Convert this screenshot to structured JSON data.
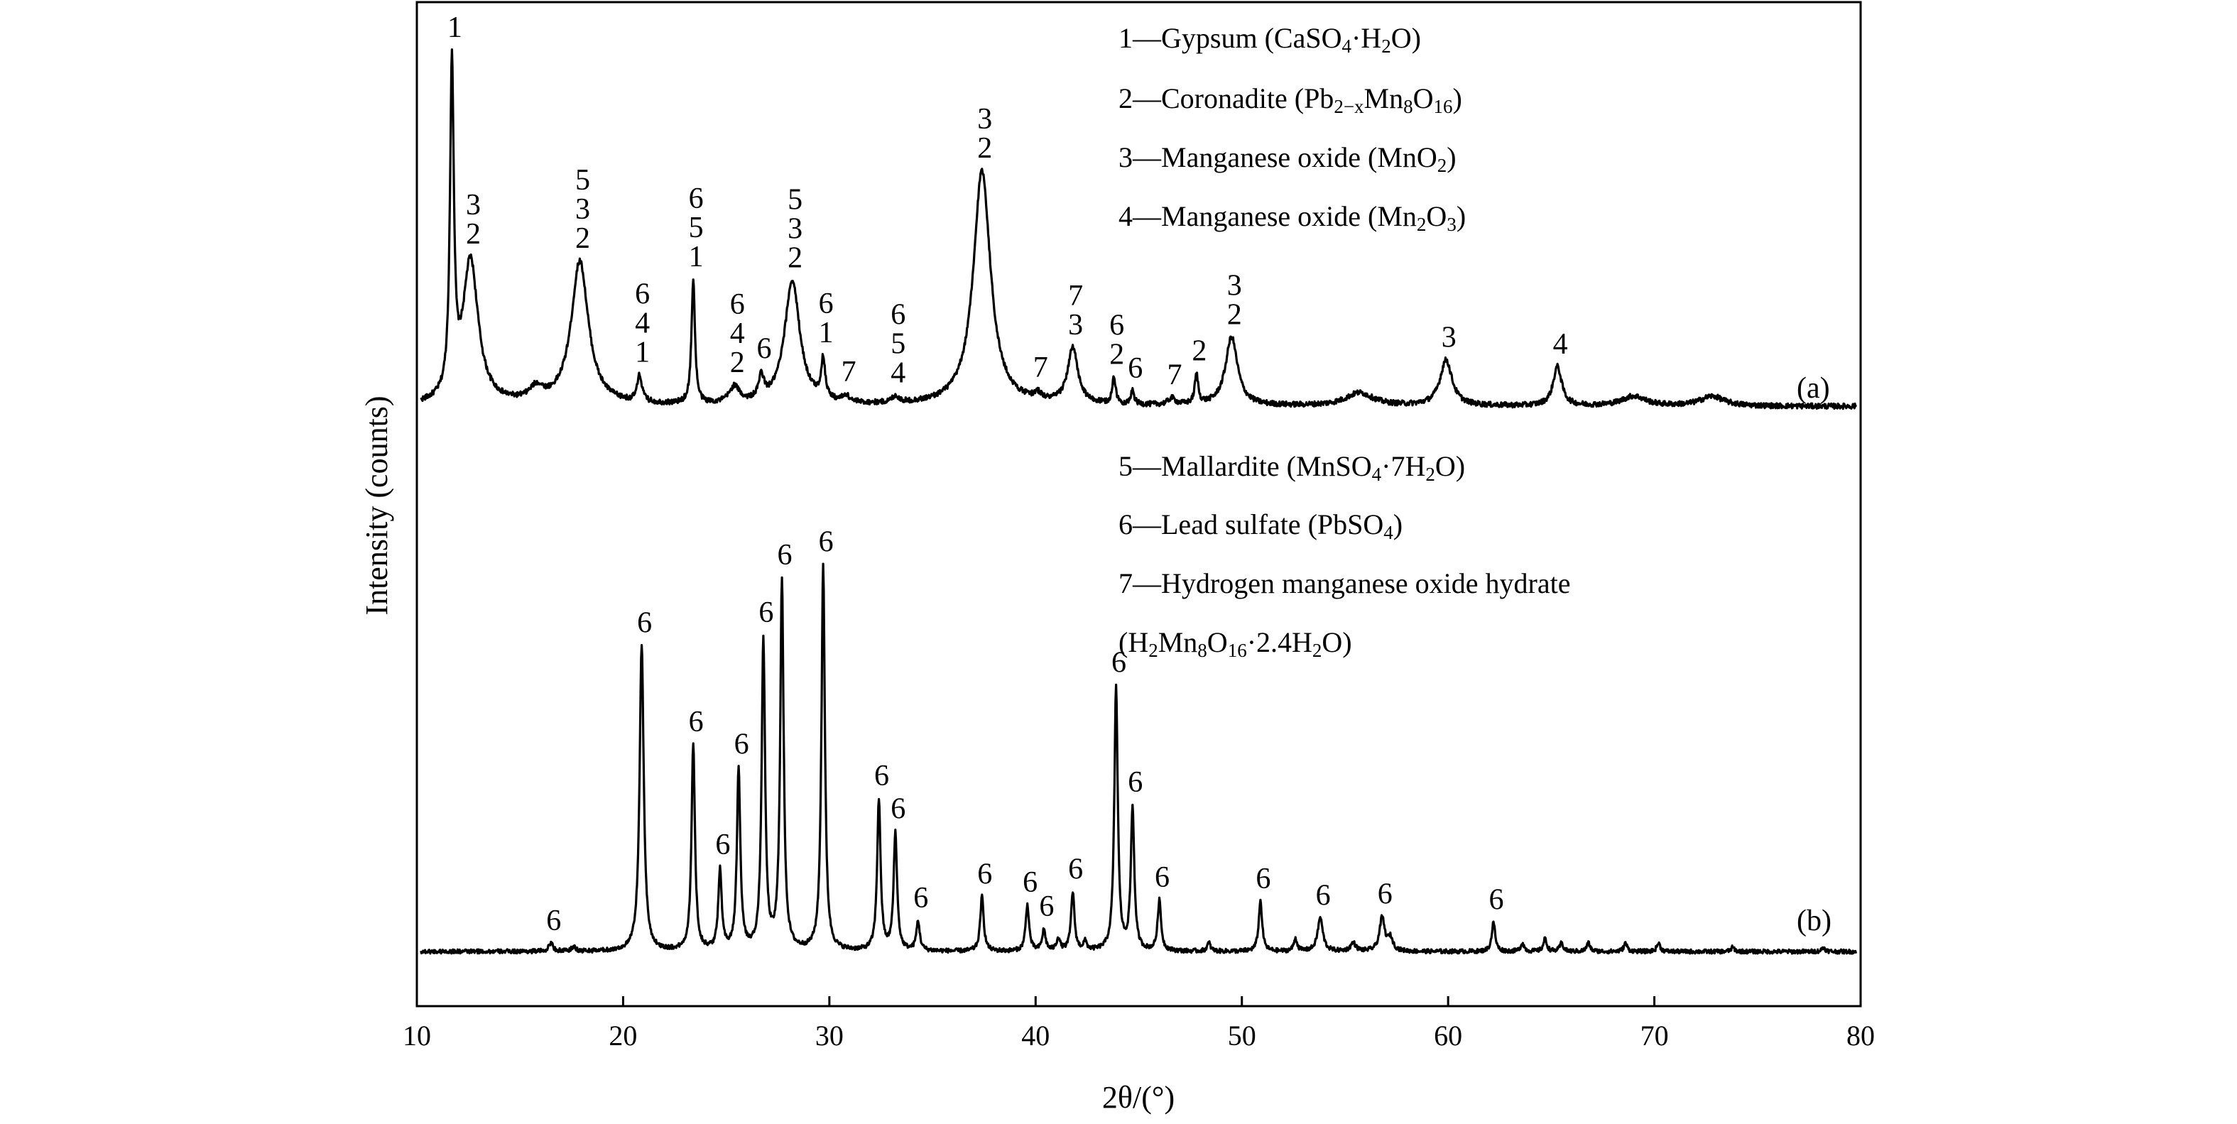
{
  "chart_data": {
    "type": "line",
    "xlabel": "2θ/(°)",
    "ylabel": "Intensity (counts)",
    "xlim": [
      10,
      80
    ],
    "x_ticks": [
      "10",
      "20",
      "30",
      "40",
      "50",
      "60",
      "70",
      "80"
    ],
    "grid": false,
    "legend": [
      {
        "id": "1",
        "name": "Gypsum",
        "formula": [
          "CaSO",
          {
            "sub": "4"
          },
          "·H",
          {
            "sub": "2"
          },
          "O"
        ]
      },
      {
        "id": "2",
        "name": "Coronadite",
        "formula": [
          "Pb",
          {
            "sub": "2−x"
          },
          "Mn",
          {
            "sub": "8"
          },
          "O",
          {
            "sub": "16"
          }
        ]
      },
      {
        "id": "3",
        "name": "Manganese oxide",
        "formula": [
          "MnO",
          {
            "sub": "2"
          }
        ]
      },
      {
        "id": "4",
        "name": "Manganese oxide",
        "formula": [
          "Mn",
          {
            "sub": "2"
          },
          "O",
          {
            "sub": "3"
          }
        ]
      },
      {
        "id": "5",
        "name": "Mallardite",
        "formula": [
          "MnSO",
          {
            "sub": "4"
          },
          "·7H",
          {
            "sub": "2"
          },
          "O"
        ]
      },
      {
        "id": "6",
        "name": "Lead sulfate",
        "formula": [
          "PbSO",
          {
            "sub": "4"
          }
        ]
      },
      {
        "id": "7",
        "name": "Hydrogen manganese oxide hydrate",
        "formula": [
          "H",
          {
            "sub": "2"
          },
          "Mn",
          {
            "sub": "8"
          },
          "O",
          {
            "sub": "16"
          },
          "·2.4H",
          {
            "sub": "2"
          },
          "O"
        ]
      }
    ],
    "series": [
      {
        "name": "(a)",
        "x_start": 10.2,
        "baseline": 0.06,
        "noise": 0.008,
        "peaks": [
          {
            "x": 11.7,
            "h": 1.0,
            "w": 0.11,
            "labels": [
              "1"
            ]
          },
          {
            "x": 12.6,
            "h": 0.44,
            "w": 0.45,
            "labels": [
              "3",
              "2"
            ]
          },
          {
            "x": 15.8,
            "h": 0.04,
            "w": 0.4,
            "labels": []
          },
          {
            "x": 17.9,
            "h": 0.44,
            "w": 0.5,
            "labels": [
              "5",
              "3",
              "2"
            ]
          },
          {
            "x": 20.8,
            "h": 0.08,
            "w": 0.14,
            "labels": [
              "6",
              "4",
              "1"
            ]
          },
          {
            "x": 23.4,
            "h": 0.38,
            "w": 0.1,
            "labels": [
              "6",
              "5",
              "1"
            ]
          },
          {
            "x": 25.4,
            "h": 0.05,
            "w": 0.3,
            "labels": [
              "6",
              "4",
              "2"
            ]
          },
          {
            "x": 26.7,
            "h": 0.07,
            "w": 0.15,
            "labels": [
              "6"
            ]
          },
          {
            "x": 28.2,
            "h": 0.38,
            "w": 0.45,
            "labels": [
              "5",
              "3",
              "2"
            ]
          },
          {
            "x": 29.7,
            "h": 0.12,
            "w": 0.12,
            "labels": [
              "6",
              "1"
            ]
          },
          {
            "x": 30.8,
            "h": 0.02,
            "w": 0.2,
            "labels": [
              "7"
            ]
          },
          {
            "x": 33.2,
            "h": 0.02,
            "w": 0.2,
            "labels": [
              "6",
              "5",
              "4"
            ]
          },
          {
            "x": 37.4,
            "h": 0.72,
            "w": 0.5,
            "labels": [
              "3",
              "2"
            ]
          },
          {
            "x": 40.1,
            "h": 0.02,
            "w": 0.2,
            "labels": [
              "7"
            ]
          },
          {
            "x": 41.8,
            "h": 0.17,
            "w": 0.3,
            "labels": [
              "7",
              "3"
            ]
          },
          {
            "x": 43.8,
            "h": 0.08,
            "w": 0.1,
            "labels": [
              "6",
              "2"
            ]
          },
          {
            "x": 44.7,
            "h": 0.04,
            "w": 0.1,
            "labels": [
              "6"
            ]
          },
          {
            "x": 46.6,
            "h": 0.02,
            "w": 0.2,
            "labels": [
              "7"
            ]
          },
          {
            "x": 47.8,
            "h": 0.09,
            "w": 0.1,
            "labels": [
              "2"
            ]
          },
          {
            "x": 49.5,
            "h": 0.21,
            "w": 0.35,
            "labels": [
              "3",
              "2"
            ]
          },
          {
            "x": 55.7,
            "h": 0.04,
            "w": 0.8,
            "labels": []
          },
          {
            "x": 59.9,
            "h": 0.14,
            "w": 0.35,
            "labels": [
              "3"
            ]
          },
          {
            "x": 65.3,
            "h": 0.12,
            "w": 0.25,
            "labels": [
              "4"
            ]
          },
          {
            "x": 69.0,
            "h": 0.03,
            "w": 0.7,
            "labels": []
          },
          {
            "x": 72.8,
            "h": 0.03,
            "w": 0.7,
            "labels": []
          }
        ]
      },
      {
        "name": "(b)",
        "x_start": 10.2,
        "baseline": 0.02,
        "noise": 0.005,
        "peaks": [
          {
            "x": 16.5,
            "h": 0.02,
            "w": 0.12,
            "labels": [
              "6"
            ]
          },
          {
            "x": 17.6,
            "h": 0.01,
            "w": 0.12,
            "labels": []
          },
          {
            "x": 20.9,
            "h": 0.73,
            "w": 0.12,
            "labels": [
              "6"
            ]
          },
          {
            "x": 23.4,
            "h": 0.49,
            "w": 0.1,
            "labels": [
              "6"
            ]
          },
          {
            "x": 24.7,
            "h": 0.19,
            "w": 0.1,
            "labels": [
              "6"
            ]
          },
          {
            "x": 25.6,
            "h": 0.43,
            "w": 0.1,
            "labels": [
              "6"
            ]
          },
          {
            "x": 26.8,
            "h": 0.74,
            "w": 0.1,
            "labels": [
              "6"
            ]
          },
          {
            "x": 27.7,
            "h": 0.88,
            "w": 0.1,
            "labels": [
              "6"
            ]
          },
          {
            "x": 29.7,
            "h": 0.92,
            "w": 0.1,
            "labels": [
              "6"
            ]
          },
          {
            "x": 32.4,
            "h": 0.36,
            "w": 0.1,
            "labels": [
              "6"
            ]
          },
          {
            "x": 33.2,
            "h": 0.28,
            "w": 0.1,
            "labels": [
              "6"
            ]
          },
          {
            "x": 34.3,
            "h": 0.07,
            "w": 0.1,
            "labels": [
              "6"
            ]
          },
          {
            "x": 37.4,
            "h": 0.13,
            "w": 0.1,
            "labels": [
              "6"
            ]
          },
          {
            "x": 39.6,
            "h": 0.11,
            "w": 0.1,
            "labels": [
              "6"
            ]
          },
          {
            "x": 40.4,
            "h": 0.05,
            "w": 0.1,
            "labels": [
              "6"
            ]
          },
          {
            "x": 41.1,
            "h": 0.03,
            "w": 0.1,
            "labels": []
          },
          {
            "x": 41.8,
            "h": 0.14,
            "w": 0.1,
            "labels": [
              "6"
            ]
          },
          {
            "x": 42.4,
            "h": 0.02,
            "w": 0.1,
            "labels": []
          },
          {
            "x": 43.9,
            "h": 0.63,
            "w": 0.1,
            "labels": [
              "6"
            ]
          },
          {
            "x": 44.7,
            "h": 0.34,
            "w": 0.1,
            "labels": [
              "6"
            ]
          },
          {
            "x": 46.0,
            "h": 0.12,
            "w": 0.1,
            "labels": [
              "6"
            ]
          },
          {
            "x": 48.4,
            "h": 0.02,
            "w": 0.1,
            "labels": []
          },
          {
            "x": 50.9,
            "h": 0.12,
            "w": 0.1,
            "labels": [
              "6"
            ]
          },
          {
            "x": 52.6,
            "h": 0.03,
            "w": 0.1,
            "labels": []
          },
          {
            "x": 53.8,
            "h": 0.08,
            "w": 0.15,
            "labels": [
              "6"
            ]
          },
          {
            "x": 55.4,
            "h": 0.02,
            "w": 0.15,
            "labels": []
          },
          {
            "x": 56.8,
            "h": 0.08,
            "w": 0.15,
            "labels": [
              "6"
            ]
          },
          {
            "x": 57.2,
            "h": 0.03,
            "w": 0.15,
            "labels": []
          },
          {
            "x": 62.2,
            "h": 0.07,
            "w": 0.1,
            "labels": [
              "6"
            ]
          },
          {
            "x": 63.6,
            "h": 0.02,
            "w": 0.1,
            "labels": []
          },
          {
            "x": 64.7,
            "h": 0.03,
            "w": 0.1,
            "labels": []
          },
          {
            "x": 65.5,
            "h": 0.02,
            "w": 0.1,
            "labels": []
          },
          {
            "x": 66.8,
            "h": 0.02,
            "w": 0.1,
            "labels": []
          },
          {
            "x": 68.6,
            "h": 0.02,
            "w": 0.1,
            "labels": []
          },
          {
            "x": 70.2,
            "h": 0.02,
            "w": 0.1,
            "labels": []
          },
          {
            "x": 73.8,
            "h": 0.01,
            "w": 0.1,
            "labels": []
          },
          {
            "x": 78.2,
            "h": 0.01,
            "w": 0.1,
            "labels": []
          }
        ]
      }
    ]
  }
}
